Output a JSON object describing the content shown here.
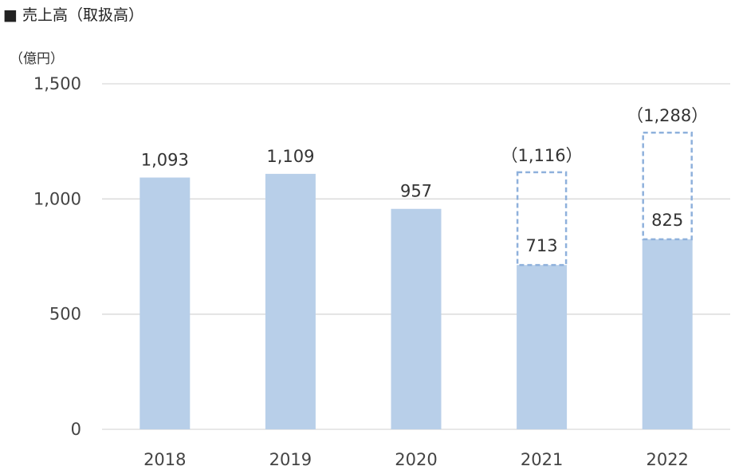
{
  "chart_data": {
    "type": "bar",
    "title": "■ 売上高（取扱高）",
    "unit_label": "（億円）",
    "categories": [
      "2018",
      "2019",
      "2020",
      "2021",
      "2022"
    ],
    "values": [
      1093,
      1109,
      957,
      713,
      825
    ],
    "value_labels": [
      "1,093",
      "1,109",
      "957",
      "713",
      "825"
    ],
    "handling_volume": [
      null,
      null,
      null,
      1116,
      1288
    ],
    "handling_volume_labels": [
      null,
      null,
      null,
      "（1,116）",
      "（1,288）"
    ],
    "ylim": [
      0,
      1500
    ],
    "yticks": [
      0,
      500,
      1000,
      1500
    ],
    "ytick_labels": [
      "0",
      "500",
      "1,000",
      "1,500"
    ],
    "grid": true,
    "bar_color": "#b8cfe9",
    "handling_box_color": "#8fb1dc",
    "grid_color": "#d9d9d9"
  }
}
